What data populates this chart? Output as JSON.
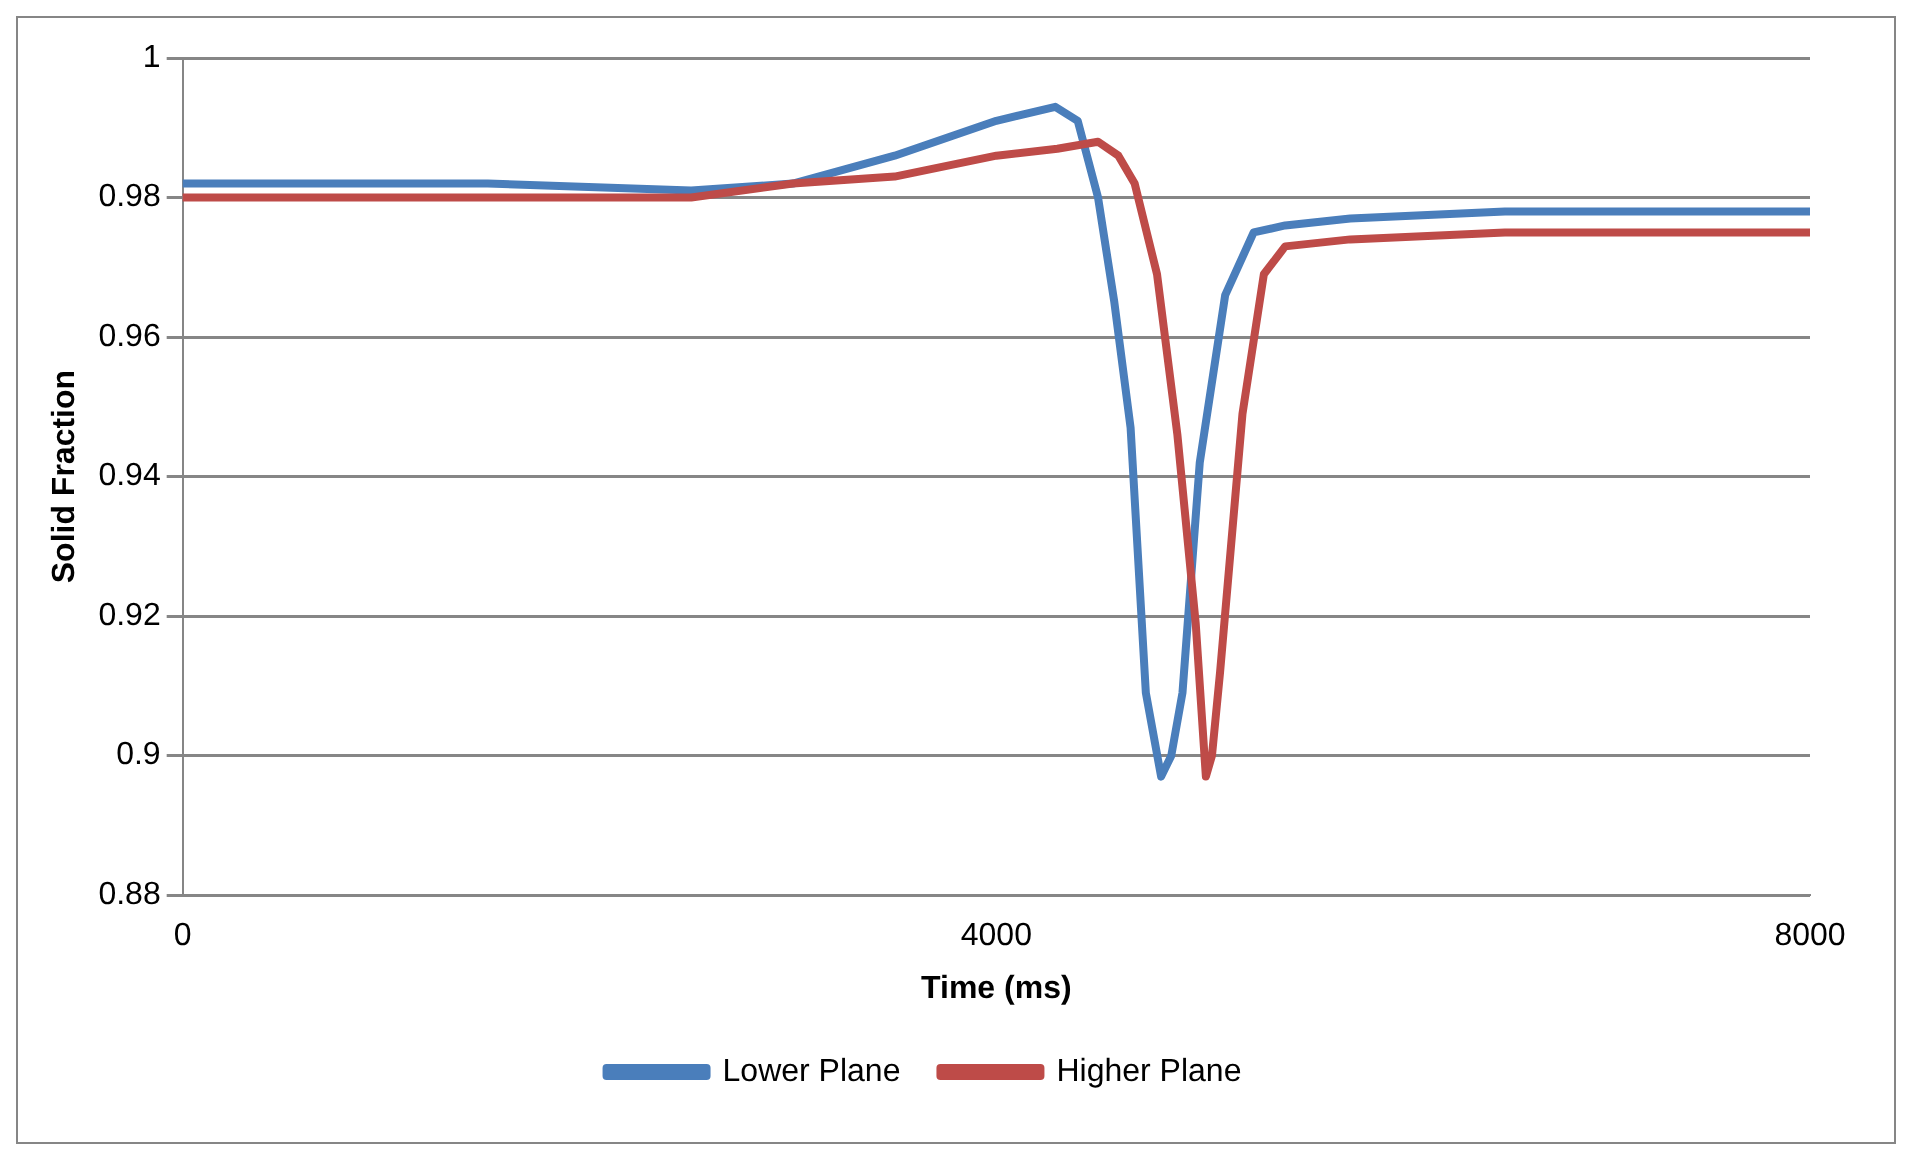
{
  "chart_data": {
    "type": "line",
    "xlabel": "Time (ms)",
    "ylabel": "Solid Fraction",
    "xlim": [
      0,
      8000
    ],
    "xticks": [
      0,
      4000,
      8000
    ],
    "ylim": [
      0.88,
      1
    ],
    "yticks": [
      0.88,
      0.9,
      0.92,
      0.94,
      0.96,
      0.98,
      1
    ],
    "grid": "y",
    "legend": "bottom",
    "marker": "none",
    "line_style": "solid",
    "series": [
      {
        "name": "Lower Plane",
        "color": "#4a7ebb",
        "x": [
          0,
          1500,
          2500,
          3000,
          3500,
          4000,
          4290,
          4400,
          4500,
          4580,
          4660,
          4735,
          4810,
          4860,
          4915,
          5000,
          5125,
          5265,
          5420,
          5740,
          6500,
          7200,
          8000
        ],
        "values": [
          0.982,
          0.982,
          0.981,
          0.982,
          0.986,
          0.991,
          0.993,
          0.991,
          0.98,
          0.965,
          0.947,
          0.909,
          0.897,
          0.9,
          0.909,
          0.942,
          0.966,
          0.975,
          0.976,
          0.977,
          0.978,
          0.978,
          0.978
        ]
      },
      {
        "name": "Higher Plane",
        "color": "#be4b48",
        "x": [
          0,
          1500,
          2500,
          3000,
          3500,
          4000,
          4300,
          4500,
          4600,
          4680,
          4790,
          4890,
          4980,
          5030,
          5060,
          5100,
          5210,
          5315,
          5420,
          5740,
          6500,
          7200,
          8000
        ],
        "values": [
          0.98,
          0.98,
          0.98,
          0.982,
          0.983,
          0.986,
          0.987,
          0.988,
          0.986,
          0.982,
          0.969,
          0.946,
          0.919,
          0.897,
          0.9,
          0.912,
          0.949,
          0.969,
          0.973,
          0.974,
          0.975,
          0.975,
          0.975
        ]
      }
    ]
  }
}
